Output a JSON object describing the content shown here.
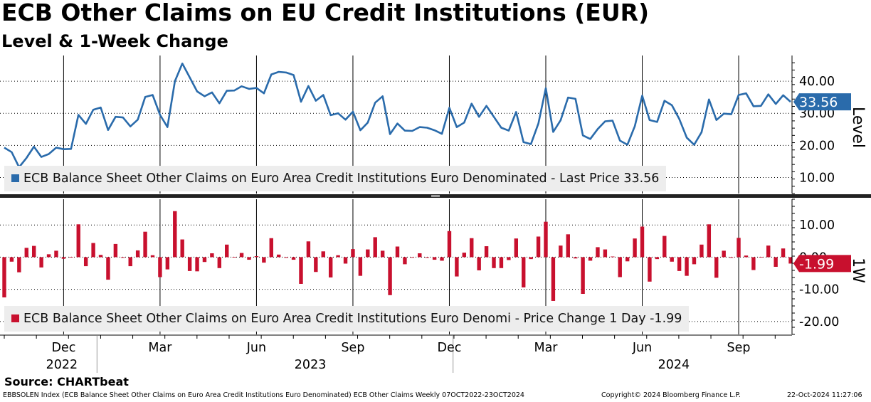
{
  "header": {
    "title": "ECB Other Claims on EU Credit Institutions (EUR)",
    "subtitle": "Level & 1-Week Change"
  },
  "footer": {
    "source": "Source: CHARTbeat",
    "ticker_info": "EBBSOLEN Index (ECB Balance Sheet Other Claims on Euro Area Credit Institutions Euro Denominated) ECB Other Claims  Weekly 07OCT2022-23OCT2024",
    "copyright": "Copyright© 2024 Bloomberg Finance L.P.",
    "timestamp": "22-Oct-2024 11:27:06"
  },
  "colors": {
    "level": "#2a6bab",
    "change": "#c8102e",
    "grid": "#000000"
  },
  "chart_data": [
    {
      "type": "line",
      "panel_label": "Level",
      "legend": "ECB Balance Sheet Other Claims on Euro Area Credit Institutions Euro Denominated - Last Price 33.56",
      "last_value_label": "33.56",
      "last_value": 33.56,
      "ylim": [
        5,
        48
      ],
      "yticks": [
        "10.00",
        "20.00",
        "30.00",
        "40.00"
      ],
      "ytick_values": [
        10,
        20,
        30,
        40
      ],
      "values": [
        19.3,
        17.9,
        13.2,
        16.1,
        19.6,
        16.4,
        17.3,
        19.3,
        18.8,
        18.9,
        29.5,
        26.7,
        31.1,
        31.8,
        24.8,
        28.9,
        28.7,
        25.9,
        28.0,
        35.1,
        35.7,
        29.5,
        25.7,
        40.0,
        45.5,
        41.2,
        36.8,
        35.3,
        36.5,
        33.1,
        37.0,
        37.1,
        38.4,
        37.6,
        37.9,
        36.2,
        42.1,
        42.9,
        42.7,
        41.9,
        33.6,
        38.5,
        33.9,
        35.7,
        29.4,
        30.0,
        28.0,
        30.5,
        24.7,
        27.1,
        33.3,
        35.3,
        23.5,
        26.8,
        24.6,
        24.5,
        25.7,
        25.5,
        24.7,
        23.6,
        31.7,
        25.7,
        27.1,
        33.0,
        28.9,
        32.3,
        28.9,
        25.5,
        24.6,
        30.4,
        21.0,
        20.4,
        26.8,
        37.8,
        24.2,
        27.8,
        34.9,
        34.5,
        23.1,
        22.0,
        25.1,
        27.5,
        27.7,
        21.5,
        20.2,
        26.0,
        35.5,
        27.9,
        27.3,
        33.9,
        32.5,
        28.2,
        22.4,
        20.2,
        24.1,
        34.3,
        27.9,
        29.9,
        29.7,
        35.7,
        36.2,
        32.2,
        32.3,
        35.9,
        32.9,
        35.6,
        33.56
      ]
    },
    {
      "type": "bar",
      "panel_label": "1W",
      "legend": "ECB Balance Sheet Other Claims on Euro Area Credit Institutions Euro Denomi - Price Change 1 Day -1.99",
      "last_value_label": "-1.99",
      "last_value": -1.99,
      "ylim": [
        -24,
        18
      ],
      "yticks": [
        "-20.00",
        "-10.00",
        "0.00",
        "10.00"
      ],
      "ytick_values": [
        -20,
        -10,
        0,
        10
      ],
      "values": [
        -12.5,
        -1.4,
        -4.7,
        2.9,
        3.5,
        -3.2,
        0.9,
        2.0,
        -0.5,
        0.1,
        10.2,
        -2.8,
        4.4,
        0.7,
        -7.0,
        4.1,
        -0.2,
        -2.8,
        2.1,
        7.9,
        0.6,
        -6.2,
        -3.8,
        14.3,
        5.5,
        -4.3,
        -4.4,
        -1.5,
        1.2,
        -3.4,
        3.9,
        0.1,
        1.3,
        -0.8,
        0.3,
        -1.7,
        5.9,
        0.8,
        -0.2,
        -0.8,
        -8.3,
        4.9,
        -4.6,
        1.8,
        -6.3,
        0.6,
        -2.0,
        2.5,
        -5.8,
        2.4,
        6.2,
        2.0,
        -11.8,
        3.3,
        -2.2,
        -0.1,
        1.2,
        -0.2,
        -0.8,
        -1.1,
        8.1,
        -6.0,
        1.4,
        5.9,
        -4.1,
        3.4,
        -3.4,
        -3.4,
        -0.9,
        5.8,
        -9.4,
        -0.6,
        6.4,
        11.0,
        -13.6,
        3.6,
        7.1,
        -0.4,
        -11.4,
        -1.1,
        3.1,
        2.4,
        0.2,
        -6.2,
        -1.3,
        5.8,
        9.5,
        -7.6,
        -0.6,
        6.6,
        -1.4,
        -4.3,
        -5.8,
        -2.2,
        3.9,
        10.2,
        -6.4,
        2.0,
        -0.2,
        6.0,
        0.5,
        -4.0,
        0.1,
        3.6,
        -3.0,
        2.7,
        -1.99
      ]
    }
  ],
  "x_axis": {
    "months": [
      {
        "label": "Dec",
        "i": 8
      },
      {
        "label": "Mar",
        "i": 21
      },
      {
        "label": "Jun",
        "i": 34
      },
      {
        "label": "Sep",
        "i": 47
      },
      {
        "label": "Dec",
        "i": 60
      },
      {
        "label": "Mar",
        "i": 73
      },
      {
        "label": "Jun",
        "i": 86
      },
      {
        "label": "Sep",
        "i": 99
      }
    ],
    "years": [
      {
        "label": "2022",
        "i": 2
      },
      {
        "label": "2023",
        "i": 35.5
      },
      {
        "label": "2024",
        "i": 84.5
      }
    ],
    "year_separators": [
      12,
      60
    ]
  }
}
